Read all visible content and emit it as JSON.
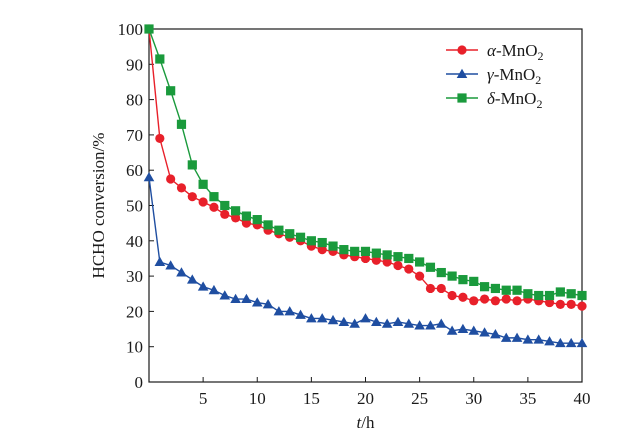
{
  "chart_data": {
    "type": "line",
    "xlabel": {
      "var": "t",
      "sep": "/",
      "unit": "h"
    },
    "ylabel": "HCHO conversion/%",
    "xlim": [
      0,
      40
    ],
    "ylim": [
      0,
      100
    ],
    "xticks": [
      5,
      10,
      15,
      20,
      25,
      30,
      35,
      40
    ],
    "yticks": [
      0,
      10,
      20,
      30,
      40,
      50,
      60,
      70,
      80,
      90,
      100
    ],
    "legend_position": "top-right",
    "grid": false,
    "series": [
      {
        "name": "α-MnO2",
        "legend": {
          "prefix": "α",
          "body": "-MnO",
          "sub": "2"
        },
        "color": "#e8202a",
        "marker": "circle",
        "x": [
          0,
          1,
          2,
          3,
          4,
          5,
          6,
          7,
          8,
          9,
          10,
          11,
          12,
          13,
          14,
          15,
          16,
          17,
          18,
          19,
          20,
          21,
          22,
          23,
          24,
          25,
          26,
          27,
          28,
          29,
          30,
          31,
          32,
          33,
          34,
          35,
          36,
          37,
          38,
          39,
          40
        ],
        "values": [
          100,
          69,
          57.5,
          55,
          52.5,
          51,
          49.5,
          47.5,
          46.5,
          45,
          44.5,
          43,
          42,
          41,
          40,
          38.5,
          37.5,
          37,
          36,
          35.5,
          35,
          34.5,
          34,
          33,
          32,
          30,
          26.5,
          26.5,
          24.5,
          24,
          23,
          23.5,
          23,
          23.5,
          23,
          23.5,
          23,
          22.5,
          22,
          22,
          21.5
        ]
      },
      {
        "name": "γ-MnO2",
        "legend": {
          "prefix": "γ",
          "body": "-MnO",
          "sub": "2"
        },
        "color": "#1f4ea1",
        "marker": "triangle",
        "x": [
          0,
          1,
          2,
          3,
          4,
          5,
          6,
          7,
          8,
          9,
          10,
          11,
          12,
          13,
          14,
          15,
          16,
          17,
          18,
          19,
          20,
          21,
          22,
          23,
          24,
          25,
          26,
          27,
          28,
          29,
          30,
          31,
          32,
          33,
          34,
          35,
          36,
          37,
          38,
          39,
          40
        ],
        "values": [
          58,
          34,
          33,
          31,
          29,
          27,
          26,
          24.5,
          23.5,
          23.5,
          22.5,
          22,
          20,
          20,
          19,
          18,
          18,
          17.5,
          17,
          16.5,
          18,
          17,
          16.5,
          17,
          16.5,
          16,
          16,
          16.5,
          14.5,
          15,
          14.5,
          14,
          13.5,
          12.5,
          12.5,
          12,
          12,
          11.5,
          11,
          11,
          11
        ]
      },
      {
        "name": "δ-MnO2",
        "legend": {
          "prefix": "δ",
          "body": "-MnO",
          "sub": "2"
        },
        "color": "#1a9a3c",
        "marker": "square",
        "x": [
          0,
          1,
          2,
          3,
          4,
          5,
          6,
          7,
          8,
          9,
          10,
          11,
          12,
          13,
          14,
          15,
          16,
          17,
          18,
          19,
          20,
          21,
          22,
          23,
          24,
          25,
          26,
          27,
          28,
          29,
          30,
          31,
          32,
          33,
          34,
          35,
          36,
          37,
          38,
          39,
          40
        ],
        "values": [
          100,
          91.5,
          82.5,
          73,
          61.5,
          56,
          52.5,
          50,
          48.5,
          47,
          46,
          44.5,
          43,
          42,
          41,
          40,
          39.5,
          38.5,
          37.5,
          37,
          37,
          36.5,
          36,
          35.5,
          35,
          34,
          32.5,
          31,
          30,
          29,
          28.5,
          27,
          26.5,
          26,
          26,
          25,
          24.5,
          24.5,
          25.5,
          25,
          24.5
        ]
      }
    ]
  }
}
